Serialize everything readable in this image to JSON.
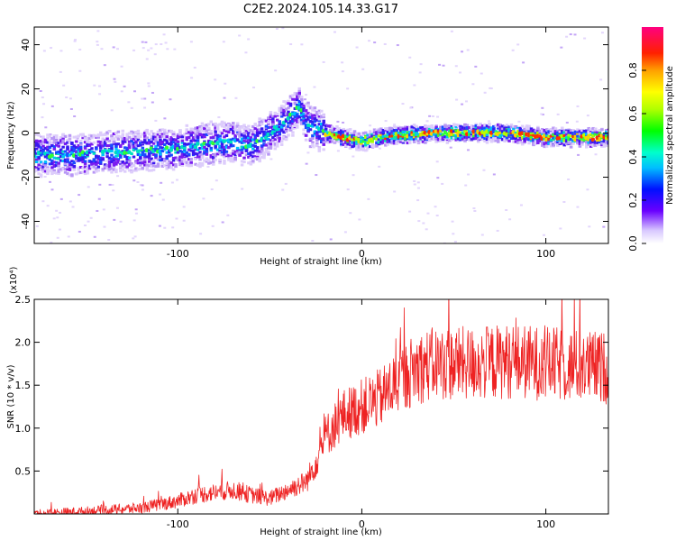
{
  "chart_data": [
    {
      "type": "heatmap",
      "title": "C2E2.2024.105.14.33.G17",
      "xlabel": "Height of straight line (km)",
      "ylabel": "Frequency (Hz)",
      "xlim": [
        -178,
        134
      ],
      "ylim": [
        -50,
        48
      ],
      "x_ticks": [
        "-100",
        "0",
        "100"
      ],
      "y_ticks": [
        "40",
        "20",
        "0",
        "-20",
        "-40"
      ],
      "colorbar": {
        "label": "Normalized spectral amplitude",
        "range": [
          0.0,
          1.0
        ],
        "ticks": [
          "0.0",
          "0.2",
          "0.4",
          "0.6",
          "0.8"
        ]
      },
      "ridge_trend": {
        "x": [
          -178,
          -160,
          -140,
          -120,
          -100,
          -85,
          -70,
          -60,
          -55,
          -45,
          -38,
          -34,
          -30,
          -20,
          -10,
          0,
          10,
          20,
          40,
          60,
          80,
          100,
          120,
          134
        ],
        "y": [
          -10,
          -10,
          -9,
          -8,
          -7,
          -5,
          -4,
          -6,
          -3,
          3,
          8,
          12,
          4,
          0,
          -2,
          -4,
          -2,
          -1,
          0,
          0,
          0,
          -2,
          -2,
          -2
        ]
      }
    },
    {
      "type": "line",
      "xlabel": "Height of straight line (km)",
      "ylabel": "SNR (10 * v/v)",
      "y_multiplier": "(x10⁴)",
      "xlim": [
        -178,
        134
      ],
      "ylim": [
        0,
        2.5
      ],
      "x_ticks": [
        "-100",
        "0",
        "100"
      ],
      "y_ticks": [
        "0.5",
        "1.0",
        "1.5",
        "2.0",
        "2.5"
      ],
      "series_color": "#ee2222",
      "trend": {
        "x": [
          -178,
          -150,
          -120,
          -100,
          -90,
          -70,
          -60,
          -50,
          -40,
          -30,
          -25,
          -20,
          -10,
          0,
          10,
          20,
          30,
          40,
          60,
          80,
          100,
          120,
          134
        ],
        "y": [
          0.0,
          0.03,
          0.07,
          0.15,
          0.22,
          0.28,
          0.22,
          0.18,
          0.28,
          0.38,
          0.6,
          0.9,
          1.15,
          1.25,
          1.35,
          1.55,
          1.7,
          1.75,
          1.75,
          1.78,
          1.75,
          1.72,
          1.7
        ]
      }
    }
  ]
}
